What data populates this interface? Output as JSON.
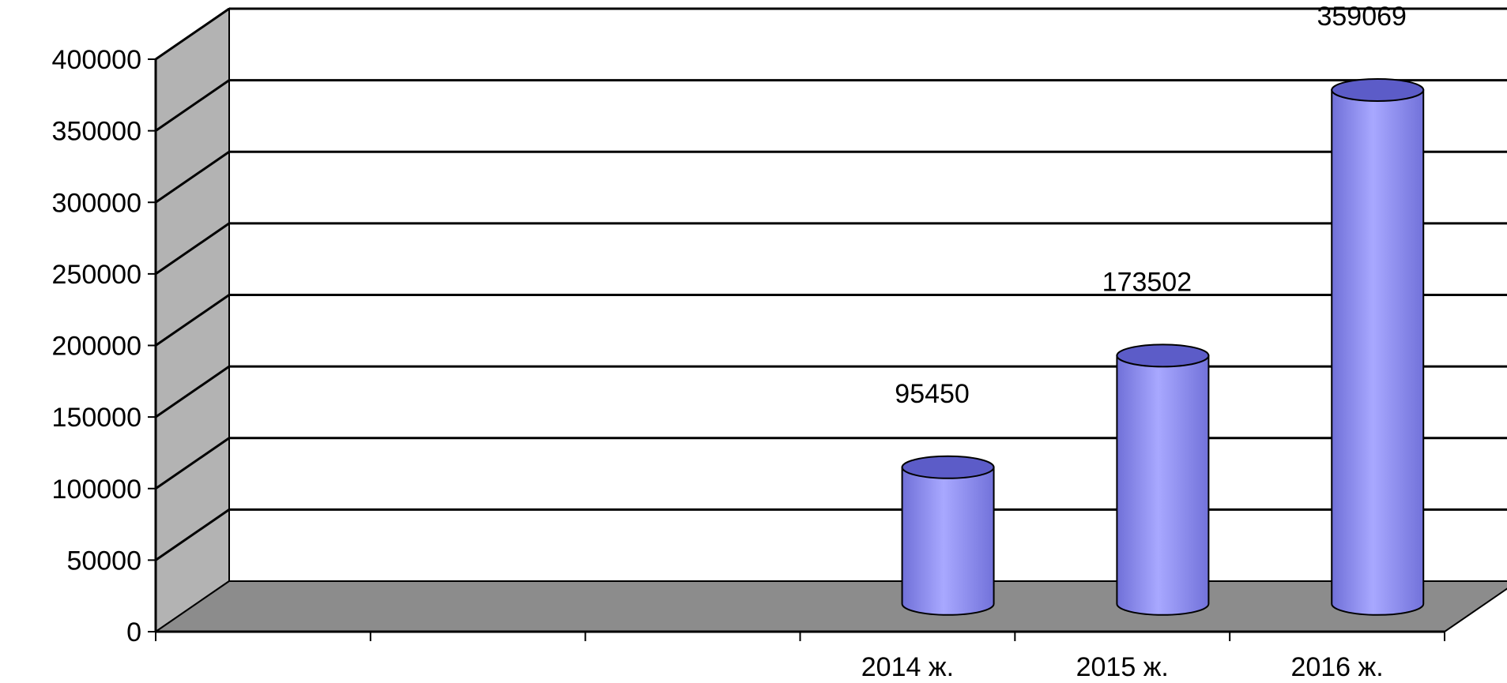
{
  "chart_data": {
    "type": "bar",
    "style": "3d-cylinder",
    "categories": [
      "",
      "",
      "",
      "2014 ж.",
      "2015 ж.",
      "2016 ж."
    ],
    "series": [
      {
        "values": [
          null,
          null,
          null,
          95450,
          173502,
          359069
        ]
      }
    ],
    "data_labels": [
      "",
      "",
      "",
      "95450",
      "173502",
      "359069"
    ],
    "ylim": [
      0,
      400000
    ],
    "yticks": [
      "0",
      "50000",
      "100000",
      "150000",
      "200000",
      "250000",
      "300000",
      "350000",
      "400000"
    ],
    "grid": true,
    "legend": "none",
    "title": "",
    "xlabel": "",
    "ylabel": ""
  },
  "colors": {
    "bar_fill": "#9999ff",
    "bar_dark": "#5c5cc8",
    "floor": "#8c8c8c",
    "side_wall": "#b3b3b3",
    "back_wall": "#ffffff",
    "grid": "#000000"
  }
}
